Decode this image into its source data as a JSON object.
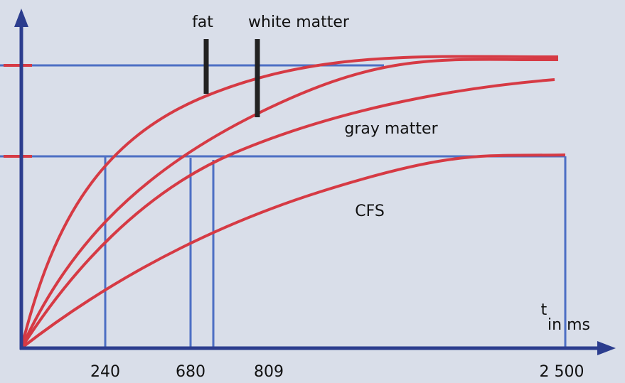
{
  "labels": {
    "fat": "fat",
    "white_matter": "white matter",
    "gray_matter": "gray matter",
    "csf": "CFS"
  },
  "axis": {
    "unit_symbol": "t",
    "unit": "in ms",
    "ticks": [
      "240",
      "680",
      "809",
      "2 500"
    ]
  }
}
